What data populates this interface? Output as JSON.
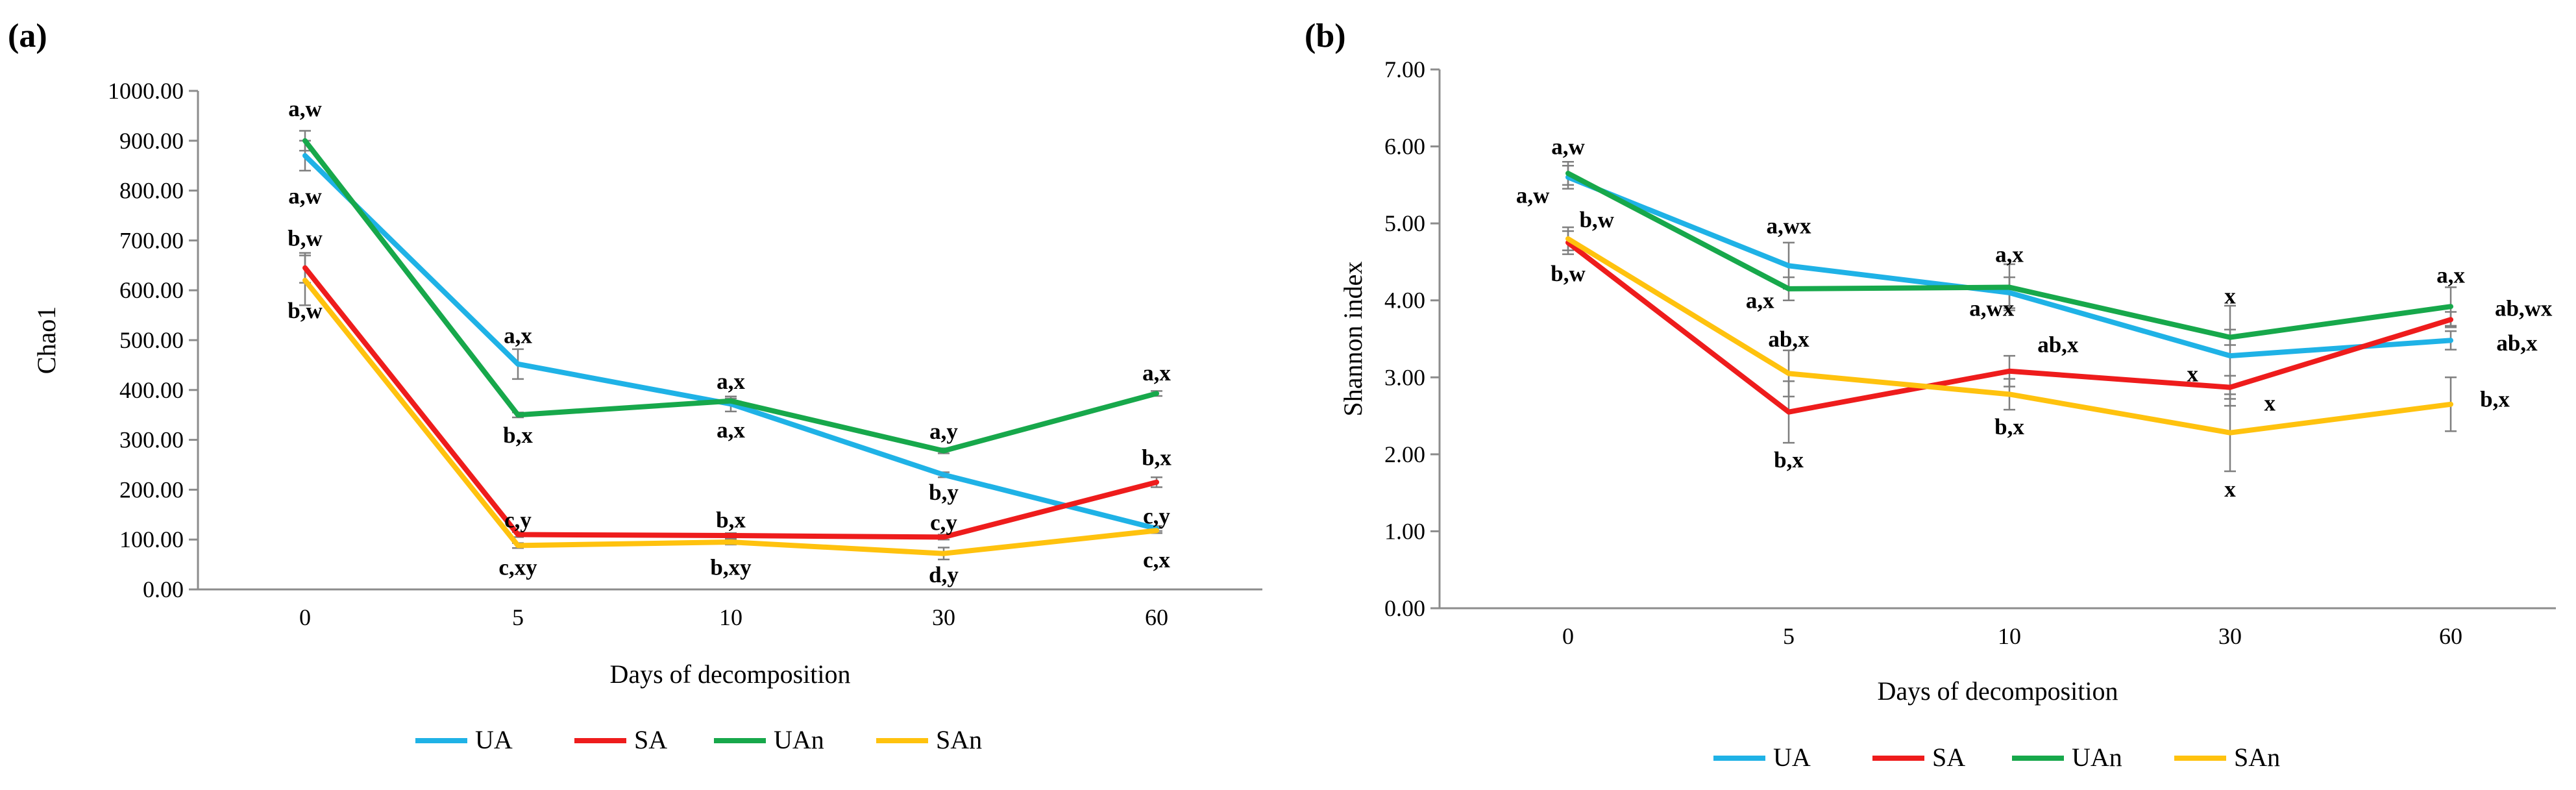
{
  "chart_data": [
    {
      "panel_label": "(a)",
      "type": "line",
      "ylabel": "Chao1",
      "xlabel": "Days of decomposition",
      "categories": [
        "0",
        "5",
        "10",
        "30",
        "60"
      ],
      "ylim": [
        0,
        1000
      ],
      "yticks": [
        "0.00",
        "100.00",
        "200.00",
        "300.00",
        "400.00",
        "500.00",
        "600.00",
        "700.00",
        "800.00",
        "900.00",
        "1000.00"
      ],
      "series": [
        {
          "name": "UA",
          "color": "#1fb2e6",
          "values": [
            870,
            452,
            372,
            230,
            122
          ],
          "errors": [
            30,
            30,
            15,
            5,
            5
          ]
        },
        {
          "name": "SA",
          "color": "#ee1c1c",
          "values": [
            645,
            110,
            108,
            105,
            215
          ],
          "errors": [
            30,
            5,
            5,
            5,
            10
          ]
        },
        {
          "name": "UAn",
          "color": "#17a84b",
          "values": [
            900,
            350,
            378,
            278,
            393
          ],
          "errors": [
            20,
            5,
            5,
            5,
            5
          ]
        },
        {
          "name": "SAn",
          "color": "#ffc20e",
          "values": [
            620,
            88,
            95,
            72,
            118
          ],
          "errors": [
            50,
            5,
            5,
            12,
            5
          ]
        }
      ],
      "annotations": [
        {
          "text": "a,w",
          "x": 0,
          "y": 965
        },
        {
          "text": "a,w",
          "x": 0,
          "y": 790
        },
        {
          "text": "b,w",
          "x": 0,
          "y": 705
        },
        {
          "text": "b,w",
          "x": 0,
          "y": 560
        },
        {
          "text": "a,x",
          "x": 1,
          "y": 510
        },
        {
          "text": "b,x",
          "x": 1,
          "y": 310
        },
        {
          "text": "c,y",
          "x": 1,
          "y": 140
        },
        {
          "text": "c,xy",
          "x": 1,
          "y": 45
        },
        {
          "text": "a,x",
          "x": 2,
          "y": 418
        },
        {
          "text": "a,x",
          "x": 2,
          "y": 320
        },
        {
          "text": "b,x",
          "x": 2,
          "y": 140
        },
        {
          "text": "b,xy",
          "x": 2,
          "y": 45
        },
        {
          "text": "a,y",
          "x": 3,
          "y": 318
        },
        {
          "text": "b,y",
          "x": 3,
          "y": 195
        },
        {
          "text": "c,y",
          "x": 3,
          "y": 135
        },
        {
          "text": "d,y",
          "x": 3,
          "y": 30
        },
        {
          "text": "a,x",
          "x": 4,
          "y": 435
        },
        {
          "text": "b,x",
          "x": 4,
          "y": 265
        },
        {
          "text": "c,y",
          "x": 4,
          "y": 148
        },
        {
          "text": "c,x",
          "x": 4,
          "y": 60
        }
      ]
    },
    {
      "panel_label": "(b)",
      "type": "line",
      "ylabel": "Shannon index",
      "xlabel": "Days of decomposition",
      "categories": [
        "0",
        "5",
        "10",
        "30",
        "60"
      ],
      "ylim": [
        0,
        7
      ],
      "yticks": [
        "0.00",
        "1.00",
        "2.00",
        "3.00",
        "4.00",
        "5.00",
        "6.00",
        "7.00"
      ],
      "series": [
        {
          "name": "UA",
          "color": "#1fb2e6",
          "values": [
            5.6,
            4.45,
            4.1,
            3.28,
            3.48
          ],
          "errors": [
            0.15,
            0.3,
            0.2,
            0.65,
            0.12
          ]
        },
        {
          "name": "SA",
          "color": "#ee1c1c",
          "values": [
            4.75,
            2.55,
            3.08,
            2.87,
            3.75
          ],
          "errors": [
            0.15,
            0.4,
            0.2,
            0.15,
            0.1
          ]
        },
        {
          "name": "UAn",
          "color": "#17a84b",
          "values": [
            5.65,
            4.15,
            4.17,
            3.52,
            3.92
          ],
          "errors": [
            0.15,
            0.15,
            0.3,
            0.1,
            0.25
          ]
        },
        {
          "name": "SAn",
          "color": "#ffc20e",
          "values": [
            4.8,
            3.05,
            2.78,
            2.28,
            2.65
          ],
          "errors": [
            0.15,
            0.3,
            0.2,
            0.5,
            0.35
          ]
        }
      ],
      "annotations": [
        {
          "text": "a,w",
          "x": 0,
          "y": 6.0
        },
        {
          "text": "a,w",
          "x": -0.16,
          "y": 5.37
        },
        {
          "text": "b,w",
          "x": 0.13,
          "y": 5.05
        },
        {
          "text": "b,w",
          "x": 0,
          "y": 4.35
        },
        {
          "text": "a,wx",
          "x": 1,
          "y": 4.97
        },
        {
          "text": "a,x",
          "x": 0.87,
          "y": 4.0
        },
        {
          "text": "ab,x",
          "x": 1,
          "y": 3.5
        },
        {
          "text": "b,x",
          "x": 1,
          "y": 1.93
        },
        {
          "text": "a,x",
          "x": 2,
          "y": 4.6
        },
        {
          "text": "a,wx",
          "x": 1.92,
          "y": 3.9
        },
        {
          "text": "ab,x",
          "x": 2.22,
          "y": 3.43
        },
        {
          "text": "b,x",
          "x": 2,
          "y": 2.36
        },
        {
          "text": "x",
          "x": 3,
          "y": 4.06
        },
        {
          "text": "x",
          "x": 2.83,
          "y": 3.05
        },
        {
          "text": "x",
          "x": 3.18,
          "y": 2.67
        },
        {
          "text": "x",
          "x": 3,
          "y": 1.55
        },
        {
          "text": "a,x",
          "x": 4,
          "y": 4.33
        },
        {
          "text": "ab,wx",
          "x": 4.33,
          "y": 3.9
        },
        {
          "text": "ab,x",
          "x": 4.3,
          "y": 3.45
        },
        {
          "text": "b,x",
          "x": 4.2,
          "y": 2.72
        }
      ]
    }
  ]
}
